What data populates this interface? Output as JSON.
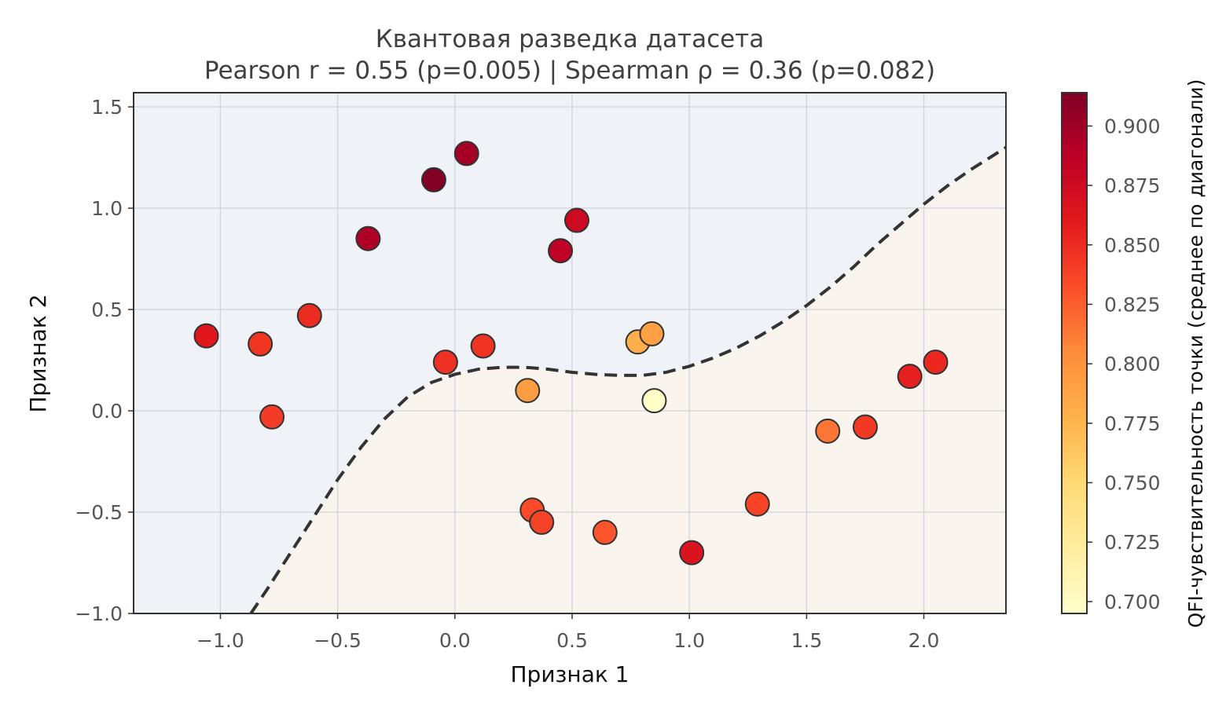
{
  "chart_data": {
    "type": "scatter",
    "title": "Квантовая разведка датасета",
    "subtitle": "Pearson r = 0.55 (p=0.005) | Spearman ρ = 0.36 (p=0.082)",
    "xlabel": "Признак 1",
    "ylabel": "Признак 2",
    "xlim": [
      -1.37,
      2.35
    ],
    "ylim": [
      -1.0,
      1.57
    ],
    "x_ticks": [
      "−1.0",
      "−0.5",
      "0.0",
      "0.5",
      "1.0",
      "1.5",
      "2.0"
    ],
    "x_tick_values": [
      -1.0,
      -0.5,
      0.0,
      0.5,
      1.0,
      1.5,
      2.0
    ],
    "y_ticks": [
      "−1.0",
      "−0.5",
      "0.0",
      "0.5",
      "1.0",
      "1.5"
    ],
    "y_tick_values": [
      -1.0,
      -0.5,
      0.0,
      0.5,
      1.0,
      1.5
    ],
    "grid": true,
    "colormap": "YlOrRd",
    "colorbar": {
      "label": "QFI-чувствительность точки (среднее по диагонали)",
      "range": [
        0.695,
        0.914
      ],
      "ticks": [
        "0.700",
        "0.725",
        "0.750",
        "0.775",
        "0.800",
        "0.825",
        "0.850",
        "0.875",
        "0.900"
      ],
      "tick_values": [
        0.7,
        0.725,
        0.75,
        0.775,
        0.8,
        0.825,
        0.85,
        0.875,
        0.9
      ]
    },
    "region_colors": {
      "upper": "#eff3f7",
      "lower": "#faf4ee"
    },
    "boundary": {
      "style": "dashed",
      "color": "#333333",
      "x": [
        -0.87,
        -0.8,
        -0.7,
        -0.6,
        -0.5,
        -0.4,
        -0.3,
        -0.2,
        -0.1,
        0.0,
        0.1,
        0.2,
        0.3,
        0.4,
        0.5,
        0.6,
        0.7,
        0.8,
        0.9,
        1.0,
        1.1,
        1.2,
        1.3,
        1.4,
        1.5,
        1.6,
        1.7,
        1.8,
        1.9,
        2.0,
        2.1,
        2.2,
        2.35
      ],
      "y": [
        -1.0,
        -0.88,
        -0.7,
        -0.52,
        -0.34,
        -0.18,
        -0.04,
        0.07,
        0.14,
        0.18,
        0.205,
        0.215,
        0.215,
        0.205,
        0.19,
        0.18,
        0.175,
        0.175,
        0.19,
        0.22,
        0.26,
        0.31,
        0.37,
        0.44,
        0.52,
        0.61,
        0.71,
        0.82,
        0.92,
        1.02,
        1.11,
        1.19,
        1.3
      ]
    },
    "points": [
      {
        "x": -1.06,
        "y": 0.37,
        "q": 0.862
      },
      {
        "x": -0.83,
        "y": 0.33,
        "q": 0.845
      },
      {
        "x": -0.78,
        "y": -0.03,
        "q": 0.842
      },
      {
        "x": -0.62,
        "y": 0.47,
        "q": 0.85
      },
      {
        "x": -0.37,
        "y": 0.85,
        "q": 0.893
      },
      {
        "x": -0.09,
        "y": 1.14,
        "q": 0.913
      },
      {
        "x": 0.05,
        "y": 1.27,
        "q": 0.897
      },
      {
        "x": -0.04,
        "y": 0.24,
        "q": 0.847
      },
      {
        "x": 0.12,
        "y": 0.32,
        "q": 0.846
      },
      {
        "x": 0.31,
        "y": 0.1,
        "q": 0.793
      },
      {
        "x": 0.33,
        "y": -0.49,
        "q": 0.834
      },
      {
        "x": 0.37,
        "y": -0.55,
        "q": 0.838
      },
      {
        "x": 0.45,
        "y": 0.79,
        "q": 0.885
      },
      {
        "x": 0.52,
        "y": 0.94,
        "q": 0.876
      },
      {
        "x": 0.64,
        "y": -0.6,
        "q": 0.829
      },
      {
        "x": 0.78,
        "y": 0.34,
        "q": 0.78
      },
      {
        "x": 0.84,
        "y": 0.38,
        "q": 0.79
      },
      {
        "x": 0.85,
        "y": 0.05,
        "q": 0.697
      },
      {
        "x": 1.01,
        "y": -0.7,
        "q": 0.866
      },
      {
        "x": 1.29,
        "y": -0.46,
        "q": 0.837
      },
      {
        "x": 1.59,
        "y": -0.1,
        "q": 0.815
      },
      {
        "x": 1.75,
        "y": -0.08,
        "q": 0.843
      },
      {
        "x": 1.94,
        "y": 0.17,
        "q": 0.856
      },
      {
        "x": 2.05,
        "y": 0.24,
        "q": 0.852
      }
    ]
  }
}
